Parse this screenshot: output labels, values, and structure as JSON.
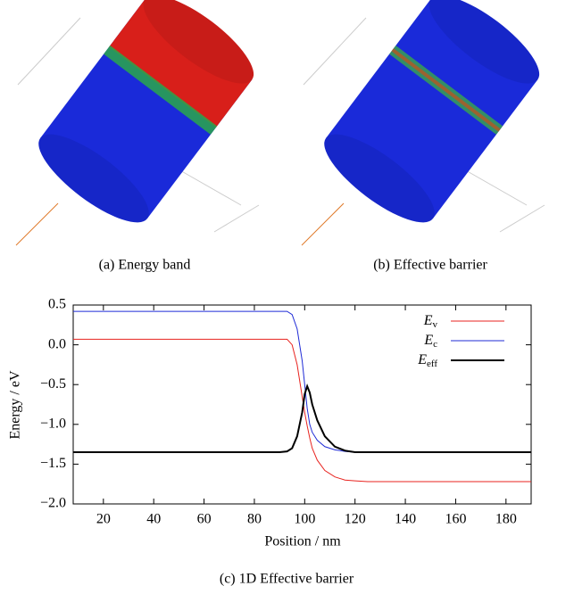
{
  "captions": [
    "(a) Energy band",
    "(b) Effective barrier"
  ],
  "chart_data": {
    "type": "line",
    "caption": "(c) 1D Effective barrier",
    "x_label": "Position / nm",
    "y_label": "Energy / eV",
    "x": [
      8,
      20,
      40,
      60,
      80,
      90,
      93,
      95,
      97,
      99,
      100,
      101,
      102,
      103,
      105,
      108,
      112,
      116,
      120,
      125,
      130,
      140,
      160,
      180,
      190
    ],
    "series": [
      {
        "name": "Ev",
        "color": "#e8231f",
        "width": 1,
        "values": [
          0.07,
          0.07,
          0.07,
          0.07,
          0.07,
          0.07,
          0.07,
          0.0,
          -0.25,
          -0.65,
          -0.85,
          -1.02,
          -1.17,
          -1.3,
          -1.45,
          -1.58,
          -1.66,
          -1.7,
          -1.71,
          -1.72,
          -1.72,
          -1.72,
          -1.72,
          -1.72,
          -1.72
        ]
      },
      {
        "name": "Ec",
        "color": "#1f2bd6",
        "width": 1,
        "values": [
          0.42,
          0.42,
          0.42,
          0.42,
          0.42,
          0.42,
          0.42,
          0.38,
          0.2,
          -0.2,
          -0.5,
          -0.8,
          -1.0,
          -1.1,
          -1.2,
          -1.28,
          -1.32,
          -1.34,
          -1.35,
          -1.35,
          -1.35,
          -1.35,
          -1.35,
          -1.35,
          -1.35
        ]
      },
      {
        "name": "Eeff",
        "color": "#000000",
        "width": 2,
        "values": [
          -1.35,
          -1.35,
          -1.35,
          -1.35,
          -1.35,
          -1.35,
          -1.34,
          -1.3,
          -1.15,
          -0.85,
          -0.62,
          -0.52,
          -0.6,
          -0.75,
          -0.95,
          -1.15,
          -1.28,
          -1.33,
          -1.35,
          -1.35,
          -1.35,
          -1.35,
          -1.35,
          -1.35,
          -1.35
        ]
      }
    ],
    "xlim": [
      8,
      190
    ],
    "xticks": [
      20,
      40,
      60,
      80,
      100,
      120,
      140,
      160,
      180
    ],
    "ylim": [
      -2.0,
      0.5
    ],
    "yticks": [
      {
        "value": -2.0,
        "label": "−2.0"
      },
      {
        "value": -1.5,
        "label": "−1.5"
      },
      {
        "value": -1.0,
        "label": "−1.0"
      },
      {
        "value": -0.5,
        "label": "−0.5"
      },
      {
        "value": 0.0,
        "label": "0.0"
      },
      0.5
    ],
    "legend": "upper right"
  }
}
